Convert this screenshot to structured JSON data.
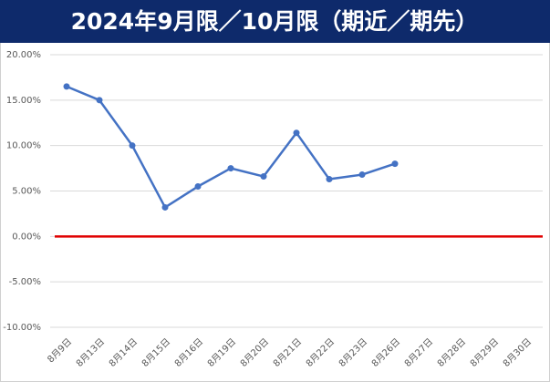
{
  "chart_data": {
    "type": "line",
    "title": "2024年9月限／10月限（期近／期先）",
    "categories": [
      "8月9日",
      "8月13日",
      "8月14日",
      "8月15日",
      "8月16日",
      "8月19日",
      "8月20日",
      "8月21日",
      "8月22日",
      "8月23日",
      "8月26日",
      "8月27日",
      "8月28日",
      "8月29日",
      "8月30日"
    ],
    "series": [
      {
        "color": "#4472c4",
        "values": [
          16.5,
          15.0,
          10.0,
          3.2,
          5.5,
          7.5,
          6.6,
          11.4,
          6.3,
          6.8,
          8.0,
          null,
          null,
          null,
          null
        ]
      }
    ],
    "ylim": [
      -10,
      20
    ],
    "yticks": [
      {
        "value": -10,
        "label": "-10.00%"
      },
      {
        "value": -5,
        "label": "-5.00%"
      },
      {
        "value": 0,
        "label": "0.00%"
      },
      {
        "value": 5,
        "label": "5.00%"
      },
      {
        "value": 10,
        "label": "10.00%"
      },
      {
        "value": 15,
        "label": "15.00%"
      },
      {
        "value": 20,
        "label": "20.00%"
      }
    ],
    "grid": true,
    "reference_line": {
      "value": 0,
      "color": "#e00000"
    }
  }
}
